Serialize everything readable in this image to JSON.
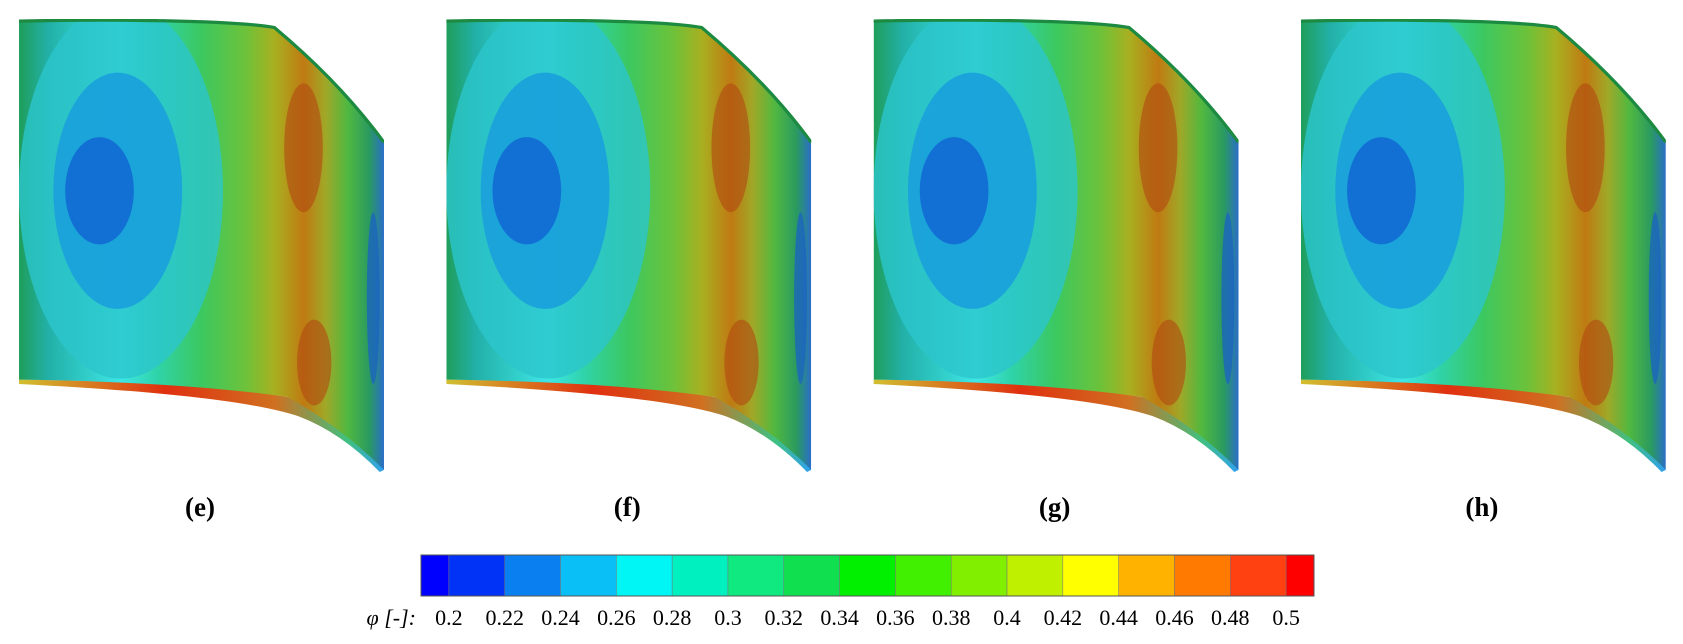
{
  "panels": [
    {
      "label": "(e)"
    },
    {
      "label": "(f)"
    },
    {
      "label": "(g)"
    },
    {
      "label": "(h)"
    }
  ],
  "colorbar": {
    "label": "φ [-]:",
    "lim": [
      0.19,
      0.51
    ],
    "ticks": [
      0.2,
      0.22,
      0.24,
      0.26,
      0.28,
      0.3,
      0.32,
      0.34,
      0.36,
      0.38,
      0.4,
      0.42,
      0.44,
      0.46,
      0.48,
      0.5
    ],
    "colors": [
      "#0000ff",
      "#0033f5",
      "#0a7ff0",
      "#0abff5",
      "#00f5f5",
      "#00f0c0",
      "#10e880",
      "#10e050",
      "#00f000",
      "#40f000",
      "#80f000",
      "#bff000",
      "#ffff00",
      "#ffb300",
      "#ff7a00",
      "#ff4010",
      "#ff0000"
    ]
  }
}
